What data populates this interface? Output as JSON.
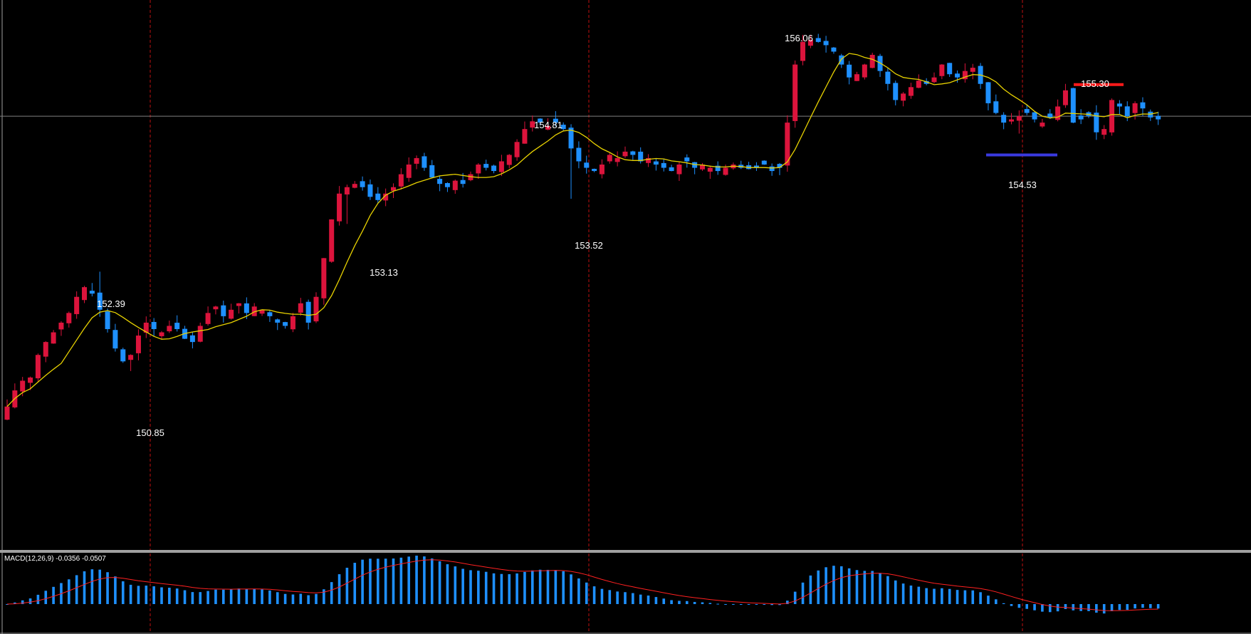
{
  "colors": {
    "background": "#000000",
    "bull": "#dc143c",
    "bear": "#1e90ff",
    "ma": "#e8d200",
    "signal": "#ff2020",
    "histogram": "#1e90ff",
    "grid": "#808080",
    "vline": "#c01010",
    "support": "#3a3ae0",
    "resistance": "#ff1a1a",
    "separator": "#a0a0a0",
    "text": "#ffffff"
  },
  "macd": {
    "label": "MACD(12,26,9) -0.0356 -0.0507"
  },
  "price_labels": [
    {
      "name": "label-152-39",
      "text": "152.39"
    },
    {
      "name": "label-150-85",
      "text": "150.85"
    },
    {
      "name": "label-153-13",
      "text": "153.13"
    },
    {
      "name": "label-154-81",
      "text": "154.81"
    },
    {
      "name": "label-153-52",
      "text": "153.52"
    },
    {
      "name": "label-156-06",
      "text": "156.06"
    },
    {
      "name": "label-155-30",
      "text": "155.30"
    },
    {
      "name": "label-154-53",
      "text": "154.53"
    }
  ],
  "chart_data": {
    "type": "candlestick",
    "horizontal_line": 154.81,
    "support_level": 154.53,
    "resistance_level": 155.3,
    "annotated_extremes": [
      {
        "value": 152.39,
        "kind": "high"
      },
      {
        "value": 150.85,
        "kind": "low"
      },
      {
        "value": 153.13,
        "kind": "low"
      },
      {
        "value": 154.81,
        "kind": "high"
      },
      {
        "value": 153.52,
        "kind": "low"
      },
      {
        "value": 156.06,
        "kind": "high"
      },
      {
        "value": 155.3,
        "kind": "high"
      },
      {
        "value": 154.53,
        "kind": "low"
      }
    ],
    "close_path": [
      150.3,
      150.55,
      150.7,
      150.75,
      151.1,
      151.3,
      151.45,
      151.6,
      151.75,
      152.0,
      152.15,
      152.05,
      151.8,
      151.5,
      151.2,
      151.0,
      151.1,
      151.4,
      151.6,
      151.5,
      151.45,
      151.55,
      151.5,
      151.35,
      151.3,
      151.55,
      151.75,
      151.85,
      151.7,
      151.8,
      151.9,
      151.75,
      151.85,
      151.8,
      151.7,
      151.6,
      151.55,
      151.7,
      151.9,
      151.6,
      152.0,
      152.6,
      153.2,
      153.6,
      153.7,
      153.75,
      153.7,
      153.55,
      153.5,
      153.6,
      153.7,
      153.9,
      154.05,
      154.15,
      154.0,
      153.85,
      153.75,
      153.7,
      153.8,
      153.75,
      153.9,
      154.05,
      154.0,
      153.95,
      154.1,
      154.2,
      154.4,
      154.6,
      154.72,
      154.7,
      154.65,
      154.7,
      154.6,
      154.3,
      154.1,
      154.0,
      153.95,
      154.05,
      154.2,
      154.15,
      154.25,
      154.2,
      154.1,
      154.15,
      154.05,
      154.0,
      153.95,
      154.05,
      154.1,
      154.0,
      154.05,
      154.0,
      153.95,
      154.0,
      154.05,
      154.0,
      153.98,
      154.0,
      154.05,
      153.95,
      154.0,
      154.7,
      155.6,
      155.95,
      155.98,
      155.95,
      155.9,
      155.8,
      155.6,
      155.4,
      155.45,
      155.6,
      155.75,
      155.5,
      155.3,
      155.05,
      155.15,
      155.25,
      155.35,
      155.3,
      155.4,
      155.6,
      155.45,
      155.4,
      155.5,
      155.55,
      155.3,
      155.0,
      154.85,
      154.7,
      154.75,
      154.8,
      154.85,
      154.75,
      154.7,
      154.78,
      154.95,
      155.2,
      154.7,
      154.75,
      154.8,
      154.55,
      154.6,
      155.05,
      154.95,
      154.8,
      155.0,
      154.92,
      154.78,
      154.75
    ],
    "ma_period": 8,
    "macd": {
      "fast": 12,
      "slow": 26,
      "signal": 9,
      "value": -0.0356,
      "signal_value": -0.0507
    }
  }
}
